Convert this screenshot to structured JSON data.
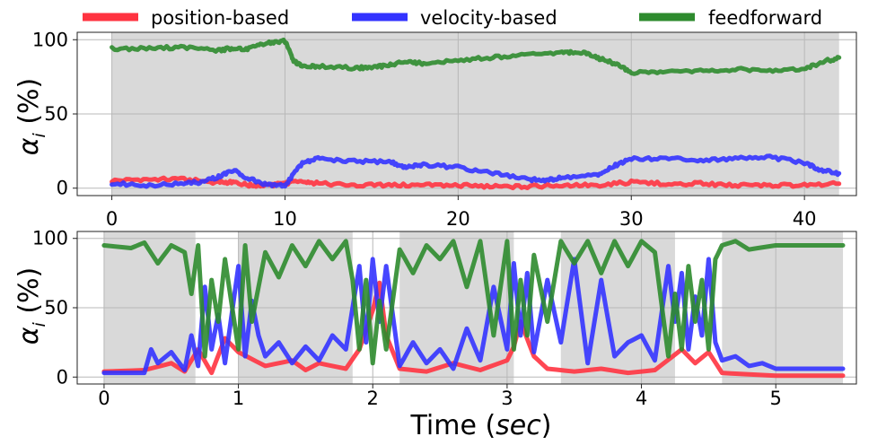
{
  "legend": [
    {
      "label": "position-based",
      "color": "#ff3340"
    },
    {
      "label": "velocity-based",
      "color": "#3333ff"
    },
    {
      "label": "feedforward",
      "color": "#2e8b2e"
    }
  ],
  "xlabel_main": "Time (",
  "xlabel_italic": "sec",
  "xlabel_end": ")",
  "ylabel_symbol": "α",
  "ylabel_sub": "i",
  "ylabel_unit": " (%)",
  "chart_data": [
    {
      "type": "line",
      "xlim": [
        -2.0,
        43.0
      ],
      "ylim": [
        -5,
        105
      ],
      "xticks": [
        0,
        10,
        20,
        30,
        40
      ],
      "xtick_labels": [
        "0",
        "10",
        "20",
        "30",
        "40"
      ],
      "yticks": [
        0,
        50,
        100
      ],
      "ytick_labels": [
        "0",
        "50",
        "100"
      ],
      "grid": true,
      "shaded_spans": [
        [
          0,
          42
        ]
      ],
      "series": [
        {
          "name": "position-based",
          "color": "#ff3340",
          "x": [
            0,
            2,
            4,
            6,
            7,
            8,
            9,
            10,
            11,
            12,
            14,
            16,
            18,
            20,
            22,
            24,
            26,
            28,
            30,
            32,
            34,
            36,
            38,
            40,
            42
          ],
          "y": [
            5,
            6,
            6,
            4,
            4,
            2,
            2,
            3,
            5,
            3,
            2,
            2,
            2,
            2,
            1,
            1,
            2,
            2,
            4,
            3,
            3,
            2,
            2,
            2,
            3
          ]
        },
        {
          "name": "velocity-based",
          "color": "#3333ff",
          "x": [
            0,
            2,
            4,
            5,
            6,
            7,
            8,
            9,
            10,
            11,
            12,
            14,
            16,
            17,
            18,
            20,
            22,
            24,
            25,
            26,
            28,
            29,
            30,
            32,
            34,
            36,
            38,
            40,
            41,
            42
          ],
          "y": [
            3,
            2,
            3,
            4,
            7,
            12,
            6,
            2,
            2,
            17,
            20,
            18,
            18,
            14,
            16,
            14,
            10,
            6,
            5,
            7,
            9,
            15,
            20,
            20,
            19,
            20,
            21,
            17,
            12,
            10
          ]
        },
        {
          "name": "feedforward",
          "color": "#2e8b2e",
          "x": [
            0,
            2,
            4,
            6,
            7,
            8,
            9,
            10,
            10.5,
            11,
            12,
            14,
            15,
            16,
            17,
            18,
            20,
            22,
            24,
            26,
            27,
            28,
            29,
            30,
            32,
            34,
            36,
            38,
            40,
            41,
            42
          ],
          "y": [
            94,
            94,
            95,
            93,
            94,
            94,
            98,
            99,
            86,
            82,
            82,
            81,
            81,
            83,
            85,
            84,
            86,
            88,
            90,
            91,
            92,
            88,
            84,
            78,
            78,
            79,
            80,
            79,
            80,
            85,
            88
          ]
        }
      ]
    },
    {
      "type": "line",
      "xlim": [
        -0.2,
        5.6
      ],
      "ylim": [
        -5,
        105
      ],
      "xticks": [
        0,
        1,
        2,
        3,
        4,
        5
      ],
      "xtick_labels": [
        "0",
        "1",
        "2",
        "3",
        "4",
        "5"
      ],
      "yticks": [
        0,
        50,
        100
      ],
      "ytick_labels": [
        "0",
        "50",
        "100"
      ],
      "grid": true,
      "shaded_spans": [
        [
          0,
          0.68
        ],
        [
          1.0,
          1.85
        ],
        [
          2.2,
          3.05
        ],
        [
          3.4,
          4.25
        ],
        [
          4.6,
          5.5
        ]
      ],
      "series": [
        {
          "name": "position-based",
          "color": "#ff3340",
          "x": [
            0,
            0.3,
            0.5,
            0.6,
            0.7,
            0.8,
            0.9,
            1.0,
            1.2,
            1.4,
            1.5,
            1.6,
            1.8,
            1.9,
            2.0,
            2.05,
            2.1,
            2.2,
            2.4,
            2.6,
            2.8,
            3.0,
            3.05,
            3.1,
            3.2,
            3.3,
            3.5,
            3.7,
            3.9,
            4.1,
            4.3,
            4.4,
            4.5,
            4.6,
            4.8,
            5.0,
            5.2,
            5.5
          ],
          "y": [
            4,
            5,
            10,
            4,
            20,
            3,
            28,
            18,
            8,
            12,
            5,
            10,
            6,
            20,
            48,
            68,
            30,
            6,
            4,
            10,
            5,
            12,
            22,
            40,
            15,
            6,
            4,
            6,
            3,
            5,
            20,
            10,
            18,
            3,
            2,
            1,
            1,
            1
          ]
        },
        {
          "name": "velocity-based",
          "color": "#3333ff",
          "x": [
            0,
            0.3,
            0.35,
            0.4,
            0.5,
            0.6,
            0.65,
            0.7,
            0.75,
            0.8,
            0.85,
            0.9,
            1.0,
            1.05,
            1.1,
            1.15,
            1.2,
            1.3,
            1.4,
            1.5,
            1.6,
            1.7,
            1.8,
            1.9,
            1.95,
            2.0,
            2.05,
            2.1,
            2.2,
            2.3,
            2.4,
            2.5,
            2.6,
            2.7,
            2.8,
            2.9,
            3.0,
            3.05,
            3.1,
            3.15,
            3.2,
            3.3,
            3.4,
            3.5,
            3.6,
            3.7,
            3.8,
            3.9,
            4.0,
            4.1,
            4.2,
            4.25,
            4.3,
            4.35,
            4.4,
            4.45,
            4.5,
            4.55,
            4.6,
            4.7,
            4.8,
            4.9,
            5.0,
            5.5
          ],
          "y": [
            3,
            3,
            20,
            10,
            18,
            5,
            30,
            8,
            65,
            20,
            45,
            10,
            80,
            15,
            55,
            30,
            15,
            25,
            10,
            22,
            12,
            30,
            20,
            80,
            25,
            85,
            40,
            80,
            8,
            25,
            10,
            20,
            6,
            35,
            12,
            65,
            20,
            82,
            30,
            75,
            18,
            70,
            25,
            85,
            10,
            70,
            15,
            25,
            30,
            12,
            80,
            40,
            75,
            20,
            58,
            30,
            85,
            25,
            12,
            15,
            8,
            10,
            6,
            6
          ]
        },
        {
          "name": "feedforward",
          "color": "#2e8b2e",
          "x": [
            0,
            0.2,
            0.3,
            0.4,
            0.5,
            0.6,
            0.65,
            0.7,
            0.75,
            0.8,
            0.85,
            0.9,
            1.0,
            1.05,
            1.1,
            1.2,
            1.3,
            1.4,
            1.5,
            1.6,
            1.7,
            1.8,
            1.85,
            1.9,
            1.95,
            2.0,
            2.05,
            2.1,
            2.2,
            2.3,
            2.4,
            2.5,
            2.6,
            2.7,
            2.8,
            2.9,
            3.0,
            3.05,
            3.1,
            3.15,
            3.2,
            3.3,
            3.4,
            3.5,
            3.6,
            3.7,
            3.8,
            3.9,
            4.0,
            4.1,
            4.2,
            4.25,
            4.3,
            4.35,
            4.4,
            4.45,
            4.5,
            4.55,
            4.6,
            4.7,
            4.8,
            5.0,
            5.5
          ],
          "y": [
            95,
            93,
            97,
            82,
            95,
            90,
            60,
            95,
            15,
            70,
            40,
            85,
            20,
            95,
            40,
            90,
            72,
            95,
            80,
            98,
            85,
            98,
            70,
            20,
            70,
            10,
            55,
            20,
            92,
            75,
            95,
            85,
            98,
            65,
            98,
            30,
            98,
            20,
            70,
            30,
            88,
            40,
            98,
            82,
            98,
            75,
            98,
            80,
            98,
            90,
            15,
            60,
            20,
            80,
            40,
            70,
            20,
            85,
            95,
            98,
            92,
            95,
            95
          ]
        }
      ]
    }
  ]
}
